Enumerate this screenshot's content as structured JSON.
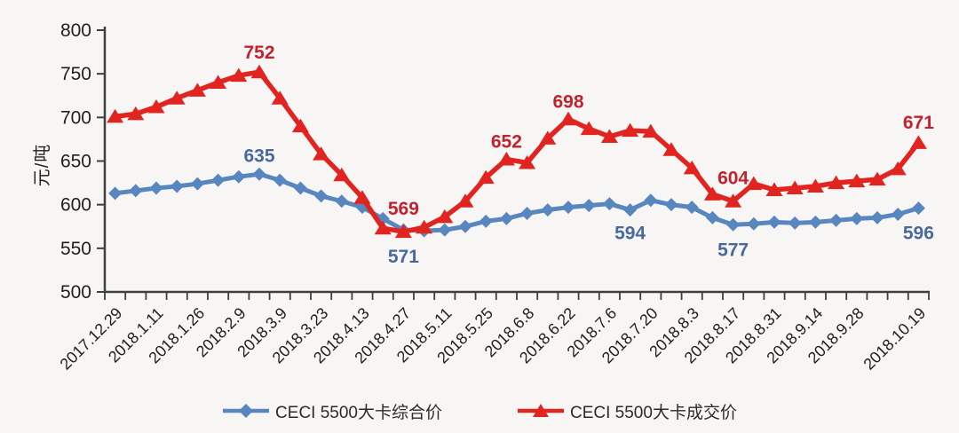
{
  "chart_data": {
    "type": "line",
    "title": "",
    "ylabel": "元/吨",
    "ylim": [
      500,
      800
    ],
    "yticks": [
      800,
      750,
      700,
      650,
      600,
      550,
      500
    ],
    "grid": false,
    "legend_position": "bottom",
    "n_points": 40,
    "x_labels": [
      "2017.12.29",
      "2018.1.11",
      "2018.1.26",
      "2018.2.9",
      "2018.3.9",
      "2018.3.23",
      "2018.4.13",
      "2018.4.27",
      "2018.5.11",
      "2018.5.25",
      "2018.6.8",
      "2018.6.22",
      "2018.7.6",
      "2018.7.20",
      "2018.8.3",
      "2018.8.17",
      "2018.8.31",
      "2018.9.14",
      "2018.9.28",
      "2018.10.19"
    ],
    "x_label_point_indices": [
      0,
      2,
      4,
      6,
      8,
      10,
      12,
      14,
      16,
      18,
      20,
      22,
      24,
      26,
      28,
      30,
      32,
      34,
      36,
      39
    ],
    "series": [
      {
        "name": "CECI 5500大卡综合价",
        "marker": "diamond",
        "color": "#5886bf",
        "label_color": "#49699b",
        "values": [
          613,
          616,
          619,
          621,
          624,
          628,
          632,
          635,
          628,
          619,
          610,
          604,
          597,
          584,
          571,
          570,
          571,
          575,
          581,
          584,
          590,
          594,
          597,
          599,
          601,
          594,
          605,
          600,
          597,
          585,
          577,
          578,
          580,
          579,
          580,
          582,
          584,
          585,
          589,
          596
        ],
        "point_labels": [
          {
            "index": 7,
            "text": "635",
            "offset": -14
          },
          {
            "index": 14,
            "text": "571",
            "offset": 37
          },
          {
            "index": 25,
            "text": "594",
            "offset": 33
          },
          {
            "index": 30,
            "text": "577",
            "offset": 35
          },
          {
            "index": 39,
            "text": "596",
            "offset": 35
          }
        ]
      },
      {
        "name": "CECI 5500大卡成交价",
        "marker": "triangle",
        "color": "#e12420",
        "label_color": "#c0232e",
        "values": [
          701,
          704,
          712,
          722,
          731,
          740,
          748,
          752,
          722,
          690,
          658,
          634,
          608,
          573,
          569,
          574,
          586,
          604,
          631,
          652,
          648,
          676,
          698,
          687,
          678,
          685,
          684,
          663,
          642,
          612,
          604,
          624,
          617,
          619,
          621,
          625,
          627,
          629,
          641,
          671
        ],
        "point_labels": [
          {
            "index": 7,
            "text": "752",
            "offset": -15
          },
          {
            "index": 14,
            "text": "569",
            "offset": -19
          },
          {
            "index": 19,
            "text": "652",
            "offset": -13
          },
          {
            "index": 22,
            "text": "698",
            "offset": -13
          },
          {
            "index": 30,
            "text": "604",
            "offset": -19
          },
          {
            "index": 39,
            "text": "671",
            "offset": -16
          }
        ]
      }
    ]
  }
}
